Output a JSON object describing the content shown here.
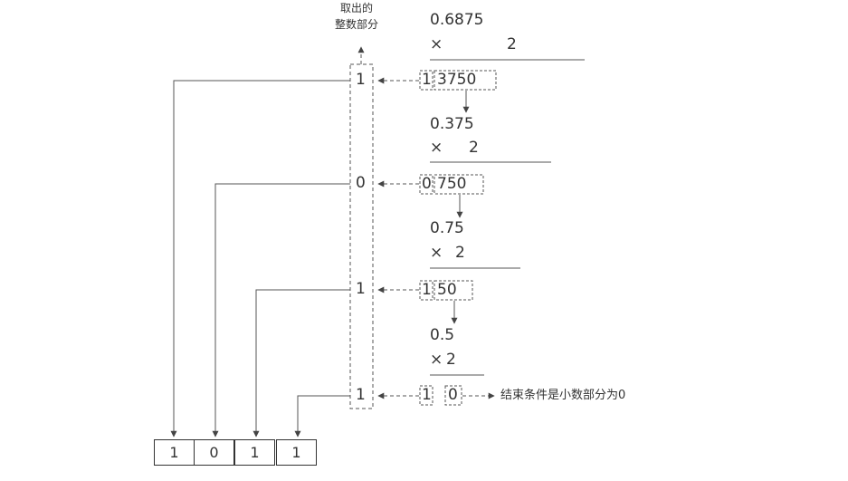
{
  "caption_top": [
    "取出的",
    "整数部分"
  ],
  "end_note": "结束条件是小数部分为0",
  "steps": [
    {
      "value": "0.6875",
      "times": "×",
      "multiplier": "2",
      "int_part": "1",
      "frac_part": "3750",
      "extracted": "1"
    },
    {
      "value": "0.375",
      "times": "×",
      "multiplier": "2",
      "int_part": "0",
      "frac_part": "750",
      "extracted": "0"
    },
    {
      "value": "0.75",
      "times": "×",
      "multiplier": "2",
      "int_part": "1",
      "frac_part": "50",
      "extracted": "1"
    },
    {
      "value": "0.5",
      "times": "×",
      "multiplier": "2",
      "int_part": "1",
      "frac_part": "0",
      "extracted": "1"
    }
  ],
  "result_bits": [
    "1",
    "0",
    "1",
    "1"
  ]
}
